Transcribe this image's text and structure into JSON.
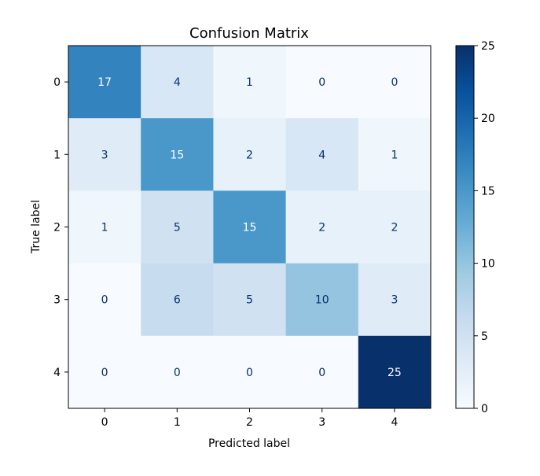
{
  "chart_data": {
    "type": "heatmap",
    "title": "Confusion Matrix",
    "xlabel": "Predicted label",
    "ylabel": "True label",
    "x_categories": [
      "0",
      "1",
      "2",
      "3",
      "4"
    ],
    "y_categories": [
      "0",
      "1",
      "2",
      "3",
      "4"
    ],
    "values": [
      [
        17,
        4,
        1,
        0,
        0
      ],
      [
        3,
        15,
        2,
        4,
        1
      ],
      [
        1,
        5,
        15,
        2,
        2
      ],
      [
        0,
        6,
        5,
        10,
        3
      ],
      [
        0,
        0,
        0,
        0,
        25
      ]
    ],
    "colormap": "Blues",
    "colorbar": {
      "range": [
        0,
        25
      ],
      "ticks": [
        0,
        5,
        10,
        15,
        20,
        25
      ]
    },
    "text_color_light": "#ffffff",
    "text_color_dark": "#08306b",
    "grid": false
  }
}
